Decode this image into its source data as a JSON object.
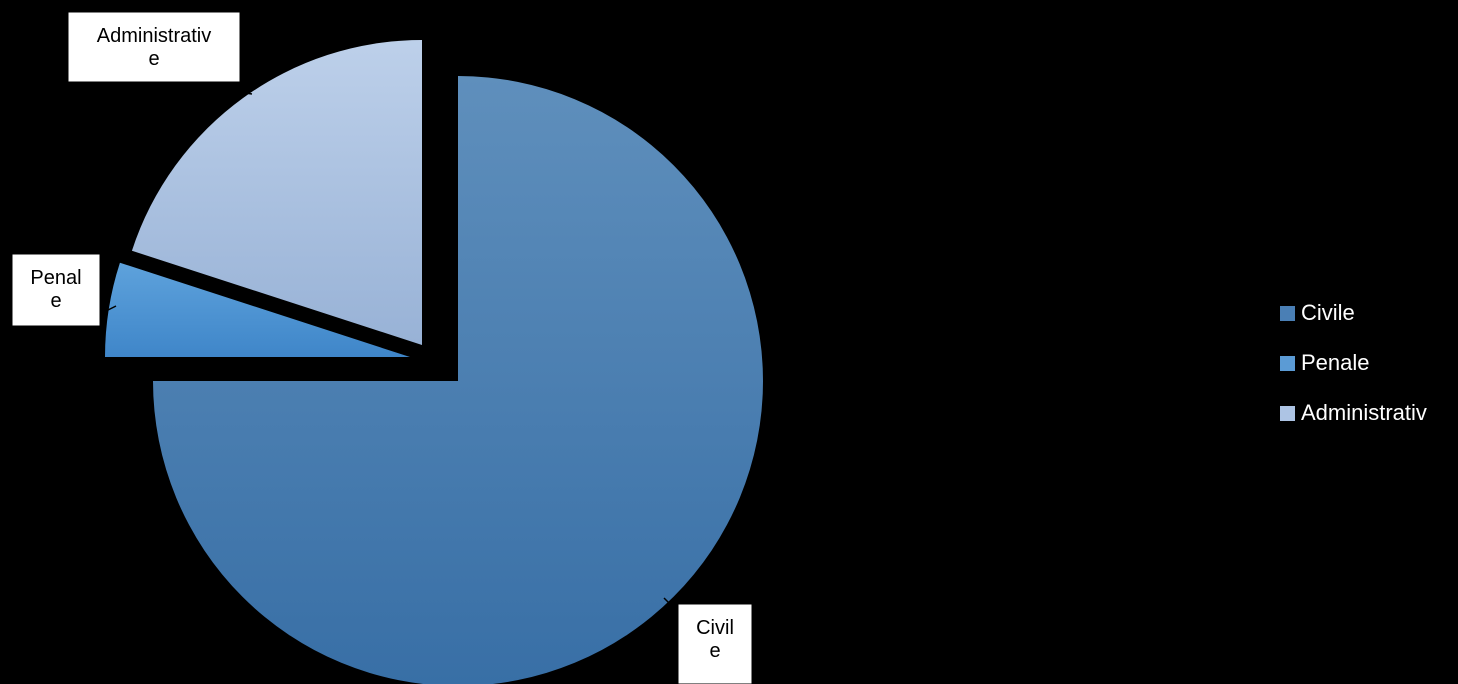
{
  "chart_data": {
    "type": "pie",
    "categories": [
      "Civile",
      "Penale",
      "Administrative"
    ],
    "values": [
      75,
      5,
      20
    ],
    "value_unit": "%",
    "title": "",
    "exploded": true,
    "legend_position": "right",
    "colors": [
      "#4a7fb5",
      "#5b9bd5",
      "#adc4e4"
    ],
    "data_labels": [
      {
        "category": "Civile",
        "lines": [
          "Civil",
          "e"
        ]
      },
      {
        "category": "Penale",
        "lines": [
          "Penal",
          "e"
        ]
      },
      {
        "category": "Administrative",
        "lines": [
          "Administrativ",
          "e"
        ]
      }
    ],
    "legend": [
      {
        "label": "Civile",
        "color": "#4a7fb5"
      },
      {
        "label": "Penale",
        "color": "#5b9bd5"
      },
      {
        "label": "Administrativ",
        "color": "#adc4e4"
      }
    ]
  }
}
